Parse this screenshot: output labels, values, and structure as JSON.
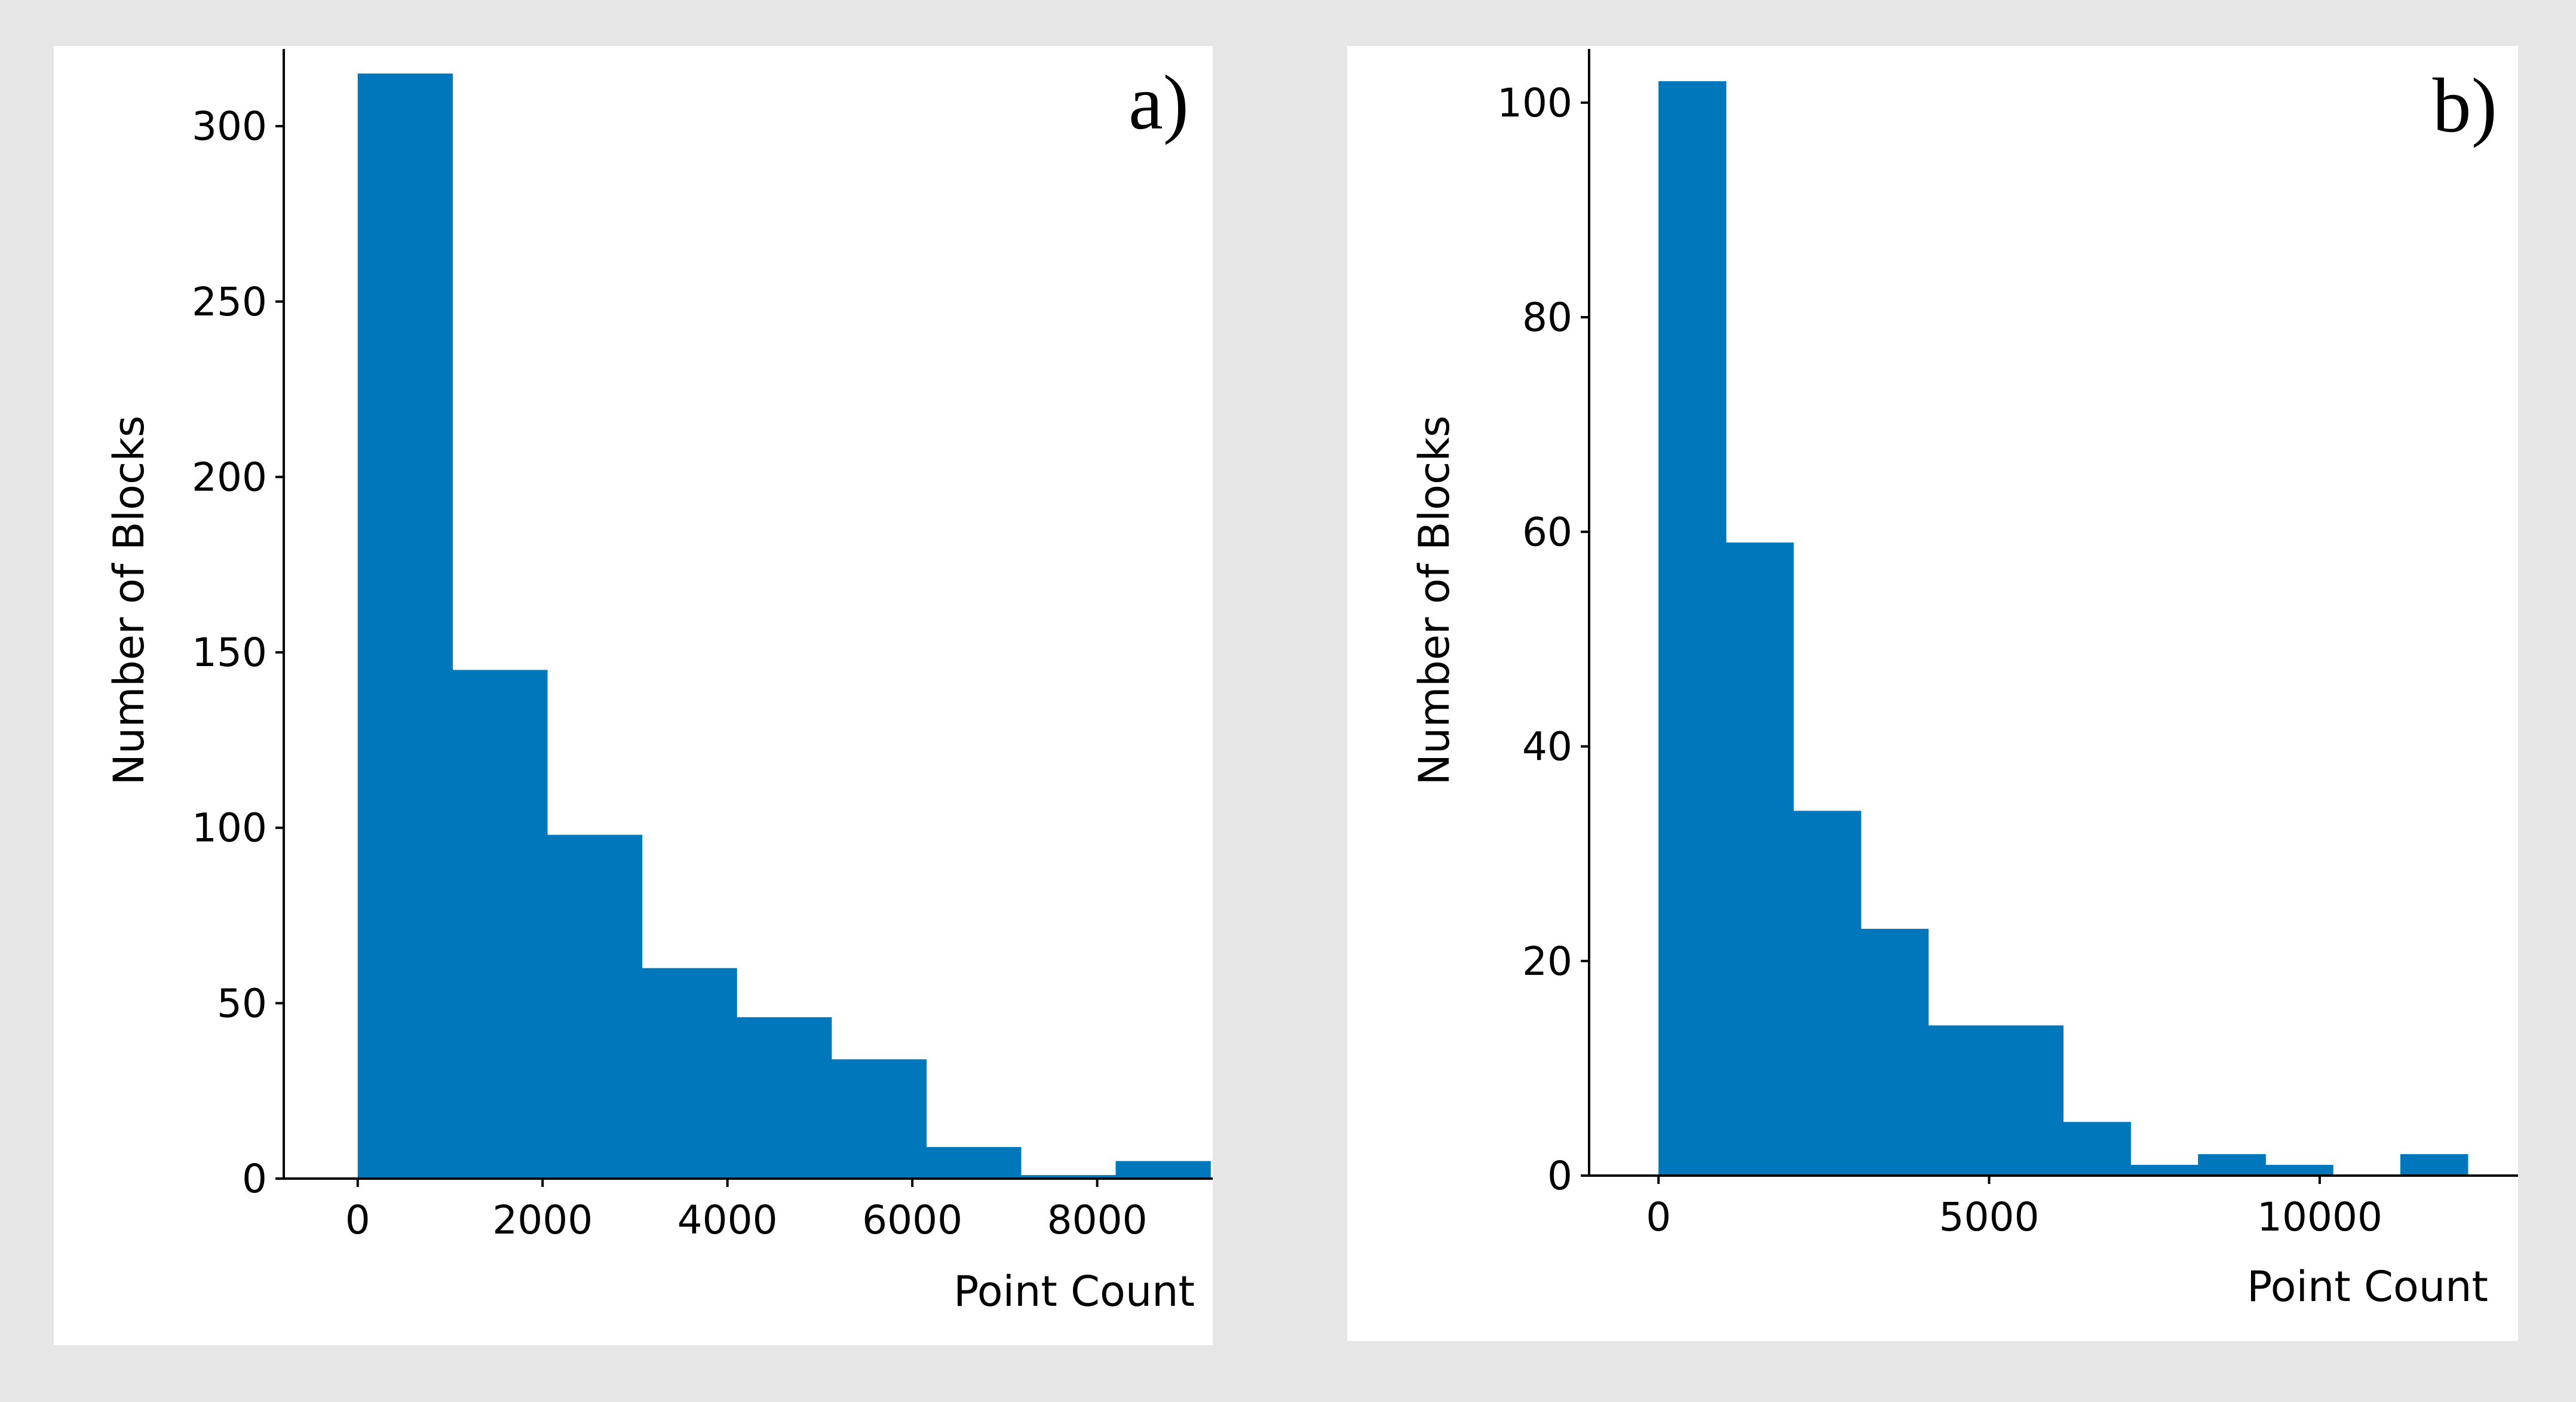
{
  "chart_data": [
    {
      "type": "bar",
      "panel_label": "a)",
      "xlabel": "Point Count",
      "ylabel": "Number of Blocks",
      "bar_color": "#0077bb",
      "bins": [
        {
          "x0": 0,
          "x1": 1025,
          "value": 315
        },
        {
          "x0": 1025,
          "x1": 2050,
          "value": 145
        },
        {
          "x0": 2050,
          "x1": 3075,
          "value": 98
        },
        {
          "x0": 3075,
          "x1": 4100,
          "value": 60
        },
        {
          "x0": 4100,
          "x1": 5125,
          "value": 46
        },
        {
          "x0": 5125,
          "x1": 6150,
          "value": 34
        },
        {
          "x0": 6150,
          "x1": 7175,
          "value": 9
        },
        {
          "x0": 7175,
          "x1": 8200,
          "value": 1
        },
        {
          "x0": 8200,
          "x1": 9225,
          "value": 5
        }
      ],
      "xlim": [
        -800,
        9250
      ],
      "ylim": [
        0,
        322
      ],
      "xticks": [
        0,
        2000,
        4000,
        6000,
        8000
      ],
      "xtick_labels": [
        "0",
        "2000",
        "4000",
        "6000",
        "8000"
      ],
      "yticks": [
        0,
        50,
        100,
        150,
        200,
        250,
        300
      ],
      "ytick_labels": [
        "0",
        "50",
        "100",
        "150",
        "200",
        "250",
        "300"
      ]
    },
    {
      "type": "bar",
      "panel_label": "b)",
      "xlabel": "Point Count",
      "ylabel": "Number of Blocks",
      "bar_color": "#0077bb",
      "bins": [
        {
          "x0": 0,
          "x1": 1020,
          "value": 102
        },
        {
          "x0": 1020,
          "x1": 2040,
          "value": 59
        },
        {
          "x0": 2040,
          "x1": 3060,
          "value": 34
        },
        {
          "x0": 3060,
          "x1": 4080,
          "value": 23
        },
        {
          "x0": 4080,
          "x1": 5100,
          "value": 14
        },
        {
          "x0": 5100,
          "x1": 6120,
          "value": 14
        },
        {
          "x0": 6120,
          "x1": 7140,
          "value": 5
        },
        {
          "x0": 7140,
          "x1": 8160,
          "value": 1
        },
        {
          "x0": 8160,
          "x1": 9180,
          "value": 2
        },
        {
          "x0": 9180,
          "x1": 10200,
          "value": 1
        },
        {
          "x0": 10200,
          "x1": 11220,
          "value": 0
        },
        {
          "x0": 11220,
          "x1": 12240,
          "value": 2
        }
      ],
      "xlim": [
        -1050,
        13000
      ],
      "ylim": [
        0,
        105
      ],
      "xticks": [
        0,
        5000,
        10000
      ],
      "xtick_labels": [
        "0",
        "5000",
        "10000"
      ],
      "yticks": [
        0,
        20,
        40,
        60,
        80,
        100
      ],
      "ytick_labels": [
        "0",
        "20",
        "40",
        "60",
        "80",
        "100"
      ]
    }
  ]
}
